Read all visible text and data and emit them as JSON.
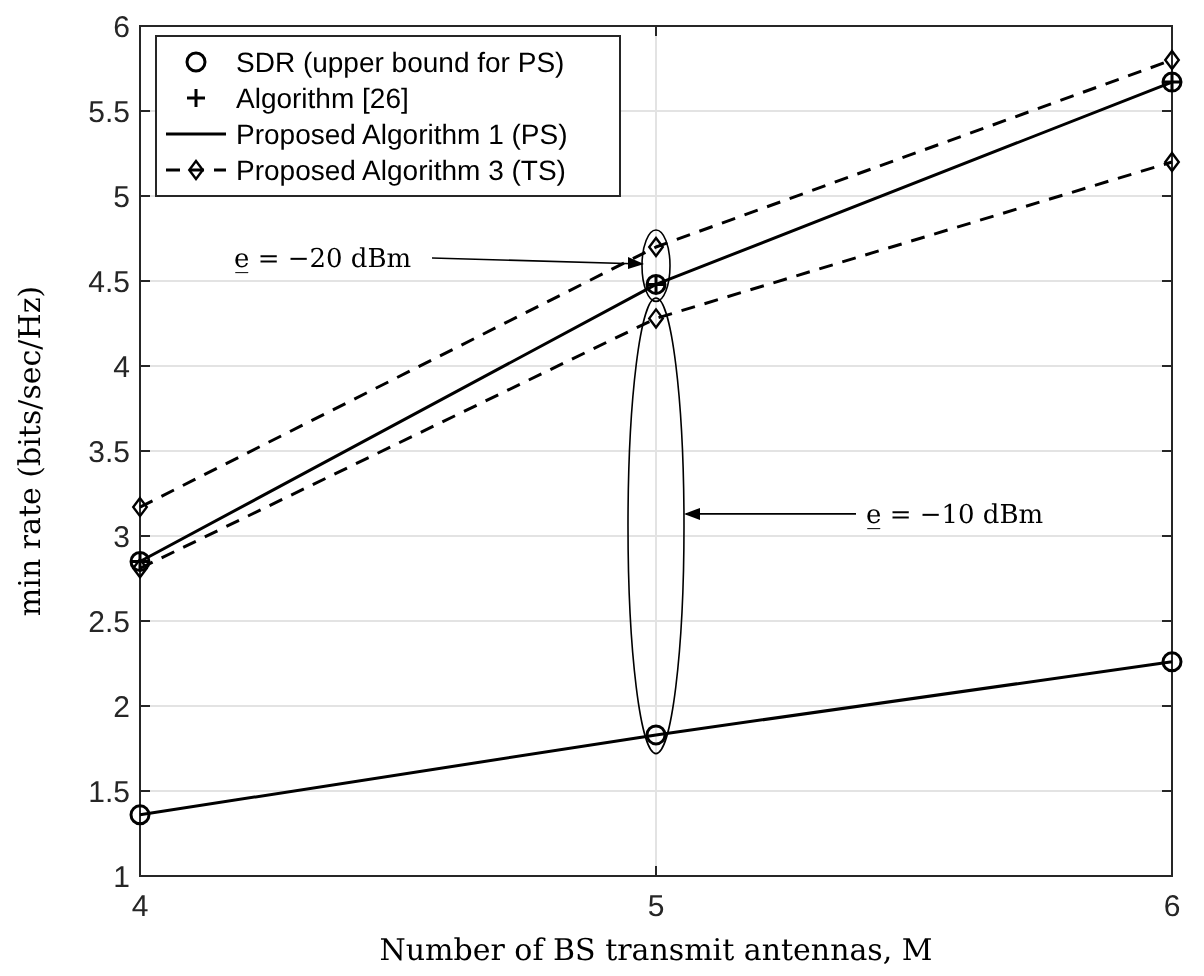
{
  "chart_data": {
    "type": "line",
    "xlabel": "Number of BS transmit antennas, M",
    "ylabel": "min rate (bits/sec/Hz)",
    "x": [
      4,
      5,
      6
    ],
    "xlim": [
      4,
      6
    ],
    "xticks": [
      4,
      5,
      6
    ],
    "ylim": [
      1,
      6
    ],
    "yticks": [
      1,
      1.5,
      2,
      2.5,
      3,
      3.5,
      4,
      4.5,
      5,
      5.5,
      6
    ],
    "grid": true,
    "legend": "top left",
    "series": [
      {
        "name": "SDR (upper bound for PS)",
        "type": "scatter",
        "marker": "circle",
        "color": "#000000",
        "values": [
          2.85,
          4.48,
          5.67
        ]
      },
      {
        "name": "Algorithm [26]",
        "type": "scatter",
        "marker": "cross",
        "color": "#000000",
        "values": [
          2.85,
          4.48,
          5.67
        ]
      },
      {
        "name": "Proposed Algorithm 1 (PS)",
        "marker": "none",
        "line_style": "solid",
        "color": "#000000",
        "values": [
          2.85,
          4.48,
          5.67
        ]
      },
      {
        "name": "Proposed Algorithm 3 (TS)",
        "marker": "diamond",
        "line_style": "dashed",
        "color": "#000000",
        "values": [
          3.17,
          4.7,
          5.8
        ]
      },
      {
        "marker": "circle",
        "line_style": "solid",
        "color": "#000000",
        "values": [
          1.36,
          1.83,
          2.26
        ]
      },
      {
        "marker": "diamond",
        "line_style": "dashed",
        "color": "#000000",
        "values": [
          2.81,
          4.28,
          5.2
        ]
      }
    ],
    "annotations": [
      {
        "text": "e̲ = −20 dBm",
        "x": 5,
        "y": 4.6
      },
      "e̲ = −10 dBm"
    ]
  }
}
